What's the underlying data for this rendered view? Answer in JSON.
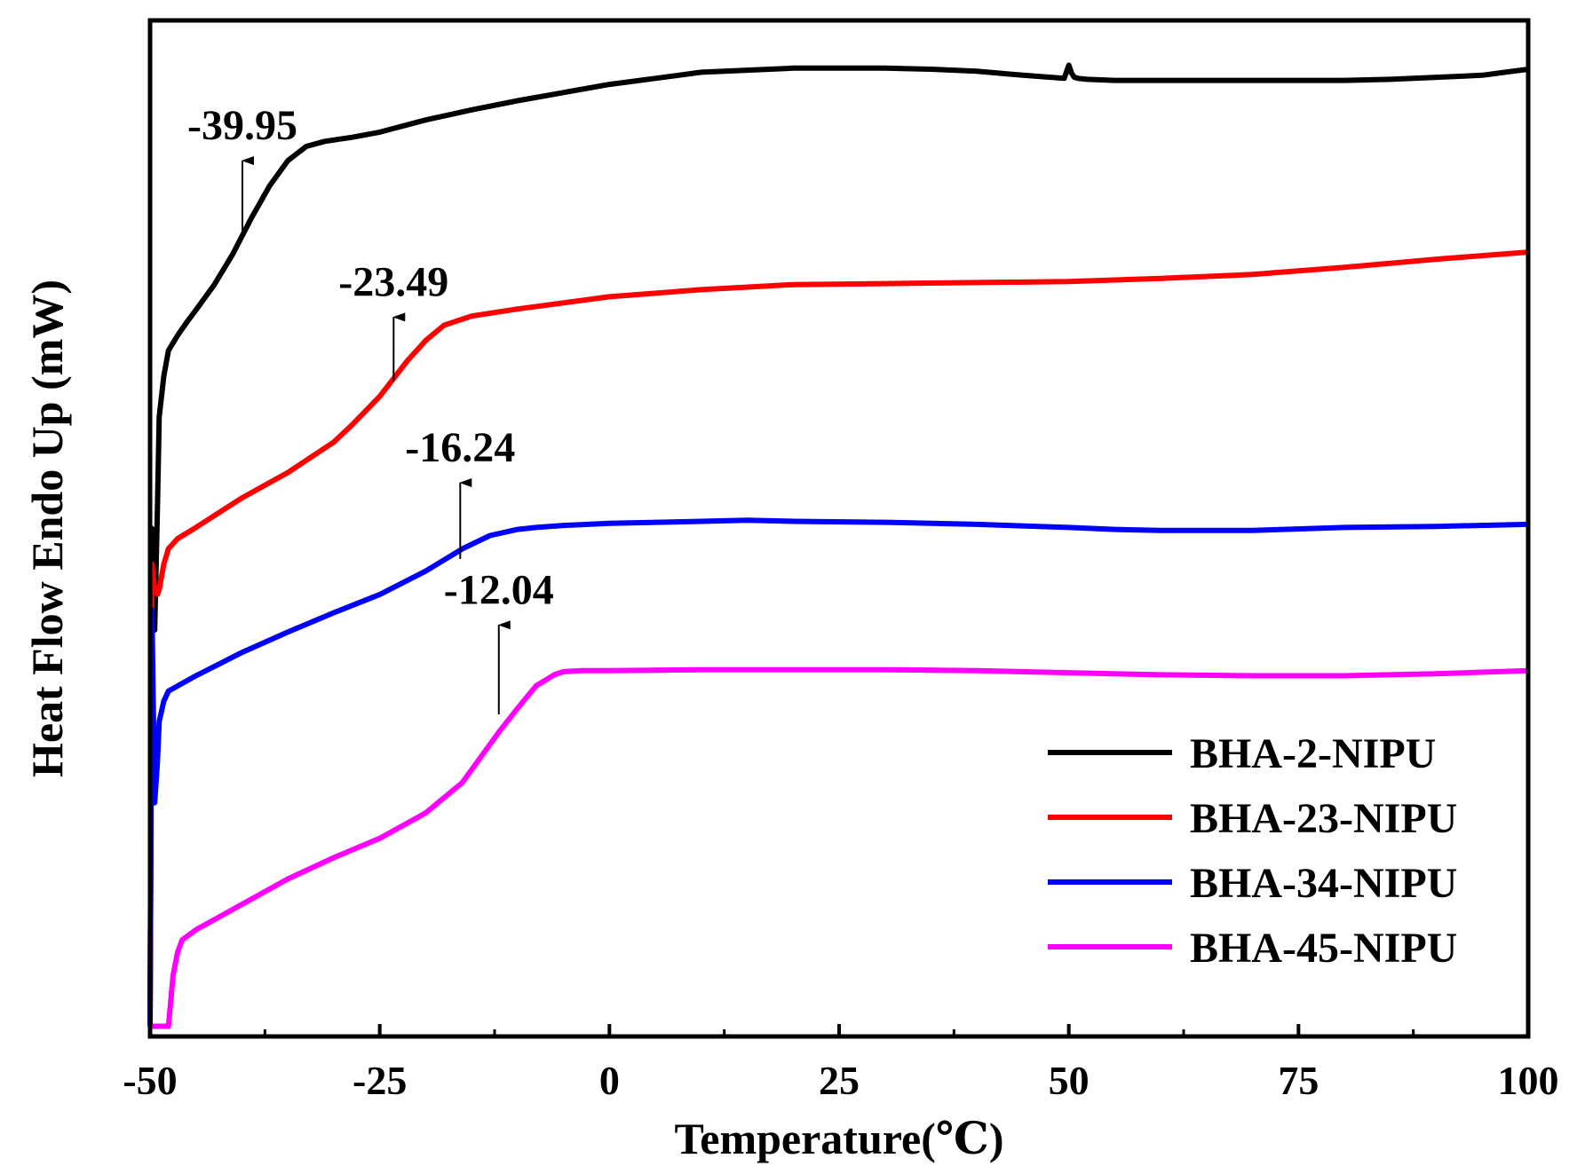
{
  "chart_data": {
    "type": "line",
    "title": "",
    "xlabel": "Temperature(℃)",
    "ylabel": "Heat Flow Endo Up (mW)",
    "xlim": [
      -50,
      100
    ],
    "ylim": [
      0,
      100
    ],
    "xticks": [
      -50,
      -25,
      0,
      25,
      50,
      75,
      100
    ],
    "xtick_labels": [
      "-50",
      "-25",
      "0",
      "25",
      "50",
      "75",
      "100"
    ],
    "yticks_shown": false,
    "legend_position": "bottom-right",
    "series": [
      {
        "name": "BHA-2-NIPU",
        "color": "#000000",
        "x": [
          -50,
          -49.8,
          -49.5,
          -49.2,
          -49,
          -48.5,
          -48,
          -47,
          -46,
          -45,
          -43,
          -41,
          -39,
          -37,
          -35,
          -33,
          -31,
          -28,
          -25,
          -20,
          -15,
          -10,
          -5,
          0,
          5,
          10,
          15,
          20,
          25,
          30,
          35,
          40,
          45,
          49.5,
          50,
          50.3,
          50.6,
          51,
          52,
          55,
          60,
          65,
          70,
          75,
          80,
          85,
          90,
          95,
          100
        ],
        "y": [
          1,
          50,
          40,
          52,
          61,
          65,
          67.5,
          69,
          70.3,
          71.5,
          74,
          77,
          80.5,
          83.7,
          86.2,
          87.6,
          88.1,
          88.5,
          89,
          90.2,
          91.2,
          92.1,
          92.9,
          93.7,
          94.3,
          94.9,
          95.1,
          95.3,
          95.3,
          95.3,
          95.2,
          95,
          94.6,
          94.3,
          95.6,
          94.8,
          94.4,
          94.3,
          94.2,
          94.1,
          94.1,
          94.1,
          94.1,
          94.1,
          94.1,
          94.2,
          94.4,
          94.6,
          95.2
        ]
      },
      {
        "name": "BHA-23-NIPU",
        "color": "#ff0000",
        "x": [
          -50,
          -49.8,
          -49.5,
          -49.2,
          -49,
          -48.5,
          -48,
          -47,
          -45,
          -40,
          -35,
          -30,
          -28,
          -25,
          -22,
          -20,
          -18,
          -16,
          -15,
          -10,
          -5,
          0,
          10,
          20,
          30,
          40,
          50,
          60,
          70,
          80,
          90,
          100
        ],
        "y": [
          1,
          46.5,
          44,
          43.5,
          44,
          46.5,
          48,
          49,
          50.1,
          53,
          55.5,
          58.5,
          60.2,
          63,
          66.5,
          68.5,
          70,
          70.6,
          70.9,
          71.6,
          72.2,
          72.8,
          73.5,
          74,
          74.1,
          74.2,
          74.3,
          74.6,
          75,
          75.7,
          76.5,
          77.2
        ]
      },
      {
        "name": "BHA-34-NIPU",
        "color": "#0000ff",
        "x": [
          -50,
          -49.8,
          -49.5,
          -49.2,
          -49,
          -48.5,
          -48,
          -47,
          -45,
          -40,
          -35,
          -30,
          -25,
          -20,
          -16,
          -13,
          -10,
          -8,
          -5,
          0,
          10,
          15,
          20,
          30,
          40,
          50,
          55,
          60,
          70,
          80,
          90,
          100
        ],
        "y": [
          1,
          42,
          23,
          27,
          31,
          33,
          34,
          34.5,
          35.5,
          37.8,
          39.8,
          41.7,
          43.5,
          45.8,
          48,
          49.3,
          49.9,
          50.1,
          50.3,
          50.5,
          50.7,
          50.8,
          50.7,
          50.6,
          50.4,
          50.1,
          49.9,
          49.8,
          49.8,
          50.1,
          50.2,
          50.4
        ]
      },
      {
        "name": "BHA-45-NIPU",
        "color": "#ff00ff",
        "x": [
          -50,
          -49.8,
          -49.5,
          -48,
          -47.5,
          -47,
          -46.5,
          -45,
          -42,
          -40,
          -35,
          -30,
          -25,
          -20,
          -16,
          -14,
          -12,
          -10,
          -8,
          -6,
          -5,
          -3,
          0,
          10,
          20,
          30,
          40,
          50,
          60,
          70,
          80,
          90,
          100
        ],
        "y": [
          1,
          1,
          1,
          1,
          6,
          8.3,
          9.5,
          10.5,
          12,
          13,
          15.5,
          17.6,
          19.5,
          22,
          25,
          27.5,
          30,
          32.3,
          34.5,
          35.6,
          35.9,
          36,
          36,
          36.1,
          36.1,
          36.1,
          36,
          35.8,
          35.6,
          35.5,
          35.5,
          35.7,
          36
        ]
      }
    ],
    "annotations": [
      {
        "text": "-39.95",
        "x": -39.95,
        "y_start": 78.5,
        "y_end": 86.2
      },
      {
        "text": "-23.49",
        "x": -23.49,
        "y_start": 64.5,
        "y_end": 70.8
      },
      {
        "text": "-16.24",
        "x": -16.24,
        "y_start": 47,
        "y_end": 54.5
      },
      {
        "text": "-12.04",
        "x": -12.04,
        "y_start": 31.7,
        "y_end": 40.5
      }
    ]
  }
}
